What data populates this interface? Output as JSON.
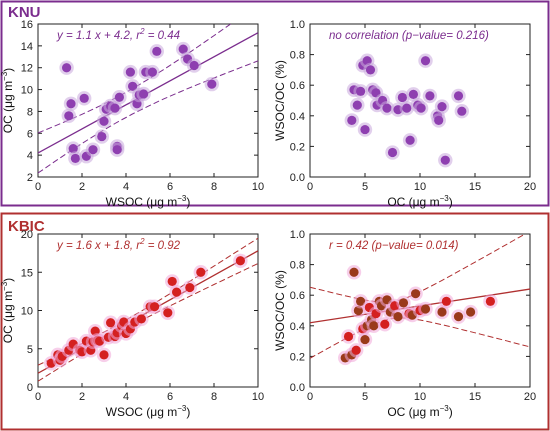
{
  "colors": {
    "knu": "#7b2d8e",
    "knu_point": "#8e3fb0",
    "knu_halo": "#c9a8dc",
    "kbic": "#b03030",
    "kbic_point": "#d42020",
    "kbic_halo": "#f0a8d8",
    "kbic_point_alt": "#9a3a1a"
  },
  "sections": [
    {
      "label": "KNU"
    },
    {
      "label": "KBIC"
    }
  ],
  "chart_data": [
    {
      "type": "scatter",
      "site": "KNU",
      "annotation": "y = 1.1 x + 4.2, r",
      "annotation_sup": "2",
      "annotation_tail": " = 0.44",
      "xlabel": "WSOC (μg m",
      "ylabel": "OC (μg m",
      "unit_sup": "−3",
      "xlim": [
        0,
        10
      ],
      "ylim": [
        2,
        16
      ],
      "xticks": [
        "0",
        "2",
        "4",
        "6",
        "8",
        "10"
      ],
      "yticks": [
        "2",
        "4",
        "6",
        "8",
        "10",
        "12",
        "14",
        "16"
      ],
      "regression": {
        "slope": 1.1,
        "intercept": 4.2
      },
      "points": {
        "x": [
          1.3,
          1.5,
          1.4,
          1.6,
          1.7,
          2.1,
          2.2,
          2.5,
          2.9,
          3.0,
          3.1,
          3.3,
          3.5,
          3.6,
          3.6,
          3.7,
          4.2,
          4.3,
          4.5,
          4.6,
          4.8,
          4.9,
          5.2,
          5.4,
          6.6,
          6.8,
          7.1,
          7.9
        ],
        "y": [
          12.0,
          8.7,
          7.6,
          4.6,
          3.7,
          9.2,
          3.9,
          4.5,
          5.7,
          7.1,
          8.2,
          8.5,
          8.3,
          4.8,
          4.5,
          9.3,
          11.6,
          10.3,
          8.7,
          9.5,
          9.6,
          11.6,
          11.6,
          13.5,
          13.7,
          12.8,
          12.2,
          10.5
        ]
      }
    },
    {
      "type": "scatter",
      "site": "KNU",
      "annotation": "no correlation (p−value= 0.216)",
      "xlabel": "OC (μg m",
      "ylabel": "WSOC/OC (%)",
      "unit_sup": "−3",
      "xlim": [
        0,
        20
      ],
      "ylim": [
        0,
        1.0
      ],
      "xticks": [
        "0",
        "5",
        "10",
        "15",
        "20"
      ],
      "yticks": [
        "0.0",
        "0.2",
        "0.4",
        "0.6",
        "0.8",
        "1.0"
      ],
      "points": {
        "x": [
          3.8,
          4.0,
          4.3,
          4.6,
          4.8,
          5.0,
          5.2,
          5.5,
          5.7,
          6.0,
          6.1,
          6.6,
          7.0,
          7.5,
          8.0,
          8.4,
          8.8,
          9.1,
          9.4,
          9.8,
          10.1,
          10.5,
          10.9,
          11.6,
          11.7,
          12.0,
          12.3,
          13.5,
          13.8
        ],
        "y": [
          0.37,
          0.57,
          0.47,
          0.56,
          0.73,
          0.31,
          0.76,
          0.7,
          0.57,
          0.55,
          0.47,
          0.5,
          0.45,
          0.16,
          0.44,
          0.52,
          0.45,
          0.24,
          0.54,
          0.47,
          0.45,
          0.76,
          0.53,
          0.4,
          0.37,
          0.46,
          0.11,
          0.53,
          0.43
        ]
      }
    },
    {
      "type": "scatter",
      "site": "KBIC",
      "annotation": "y = 1.6 x + 1.8, r",
      "annotation_sup": "2",
      "annotation_tail": " = 0.92",
      "xlabel": "WSOC (μg m",
      "ylabel": "OC (μg m",
      "unit_sup": "−3",
      "xlim": [
        0,
        10
      ],
      "ylim": [
        0,
        20
      ],
      "xticks": [
        "0",
        "2",
        "4",
        "6",
        "8",
        "10"
      ],
      "yticks": [
        "0",
        "5",
        "10",
        "15",
        "20"
      ],
      "regression": {
        "slope": 1.6,
        "intercept": 1.8
      },
      "points": {
        "x": [
          0.6,
          0.9,
          1.0,
          1.1,
          1.4,
          1.6,
          1.9,
          2.0,
          2.2,
          2.4,
          2.5,
          2.6,
          2.7,
          2.8,
          3.0,
          3.2,
          3.3,
          3.5,
          3.6,
          3.8,
          3.9,
          4.0,
          4.2,
          4.4,
          4.7,
          5.1,
          5.3,
          5.9,
          6.1,
          6.3,
          6.9,
          7.4,
          9.2
        ],
        "y": [
          3.1,
          4.2,
          3.5,
          4.0,
          4.8,
          5.6,
          4.8,
          4.6,
          6.0,
          4.8,
          5.9,
          7.3,
          6.1,
          6.0,
          4.2,
          6.5,
          8.4,
          6.6,
          7.1,
          8.0,
          8.5,
          7.0,
          7.6,
          8.5,
          8.9,
          10.5,
          10.5,
          9.7,
          13.8,
          12.4,
          13.0,
          15.0,
          16.5
        ]
      }
    },
    {
      "type": "scatter",
      "site": "KBIC",
      "annotation": "r = 0.42 (p−value= 0.014)",
      "xlabel": "OC (μg m",
      "ylabel": "WSOC/OC (%)",
      "unit_sup": "−3",
      "xlim": [
        0,
        20
      ],
      "ylim": [
        0,
        1.0
      ],
      "xticks": [
        "0",
        "5",
        "10",
        "15",
        "20"
      ],
      "yticks": [
        "0.0",
        "0.2",
        "0.4",
        "0.6",
        "0.8",
        "1.0"
      ],
      "regression": {
        "slope": 0.011,
        "intercept": 0.42
      },
      "points": {
        "x": [
          3.2,
          3.5,
          3.8,
          4.0,
          4.2,
          4.4,
          4.6,
          4.8,
          5.0,
          5.2,
          5.4,
          5.6,
          5.8,
          6.0,
          6.3,
          6.5,
          6.8,
          7.0,
          7.3,
          7.7,
          8.0,
          8.5,
          9.0,
          9.3,
          9.6,
          10.0,
          10.5,
          12.0,
          12.4,
          13.5,
          14.6,
          16.4
        ],
        "y": [
          0.19,
          0.33,
          0.21,
          0.75,
          0.24,
          0.5,
          0.56,
          0.38,
          0.31,
          0.4,
          0.52,
          0.44,
          0.4,
          0.48,
          0.56,
          0.53,
          0.41,
          0.57,
          0.49,
          0.53,
          0.46,
          0.55,
          0.48,
          0.47,
          0.61,
          0.5,
          0.51,
          0.49,
          0.56,
          0.46,
          0.49,
          0.56
        ]
      }
    }
  ]
}
